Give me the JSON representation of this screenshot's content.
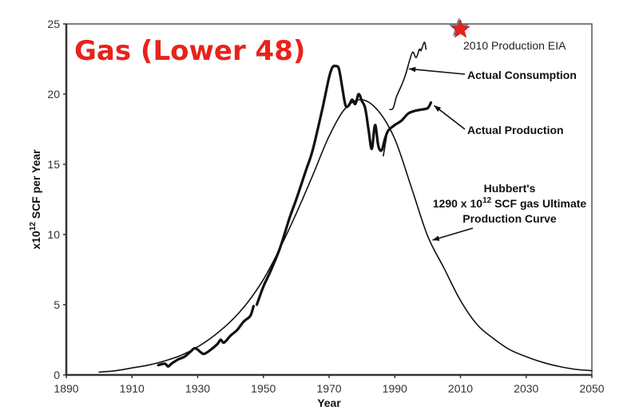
{
  "chart_data": {
    "type": "line",
    "title": "Gas (Lower 48)",
    "title_color": "#e8231c",
    "xlabel": "Year",
    "ylabel_prefix": "x10",
    "ylabel_exp": "12",
    "ylabel_suffix": " SCF per Year",
    "xlim": [
      1890,
      2050
    ],
    "ylim": [
      0,
      25
    ],
    "x_ticks": [
      1890,
      1910,
      1930,
      1950,
      1970,
      1990,
      2010,
      2030,
      2050
    ],
    "y_ticks": [
      0,
      5,
      10,
      15,
      20,
      25
    ],
    "grid": false,
    "series": [
      {
        "name": "Hubbert's Production Curve",
        "style": "thin",
        "points": [
          [
            1900,
            0.2
          ],
          [
            1905,
            0.3
          ],
          [
            1910,
            0.5
          ],
          [
            1915,
            0.7
          ],
          [
            1920,
            1.0
          ],
          [
            1925,
            1.4
          ],
          [
            1930,
            2.0
          ],
          [
            1935,
            2.8
          ],
          [
            1940,
            3.8
          ],
          [
            1945,
            5.1
          ],
          [
            1950,
            6.8
          ],
          [
            1955,
            9.0
          ],
          [
            1960,
            11.5
          ],
          [
            1965,
            14.2
          ],
          [
            1970,
            17.0
          ],
          [
            1975,
            19.0
          ],
          [
            1980,
            19.6
          ],
          [
            1985,
            18.8
          ],
          [
            1990,
            16.8
          ],
          [
            1995,
            13.4
          ],
          [
            2000,
            9.9
          ],
          [
            2005,
            7.6
          ],
          [
            2010,
            5.3
          ],
          [
            2015,
            3.6
          ],
          [
            2020,
            2.6
          ],
          [
            2025,
            1.8
          ],
          [
            2030,
            1.3
          ],
          [
            2035,
            0.9
          ],
          [
            2040,
            0.6
          ],
          [
            2045,
            0.4
          ],
          [
            2050,
            0.3
          ]
        ]
      },
      {
        "name": "Actual Production",
        "style": "thick",
        "segments": [
          [
            [
              1918,
              0.7
            ],
            [
              1920,
              0.8
            ],
            [
              1921,
              0.6
            ],
            [
              1922,
              0.8
            ],
            [
              1924,
              1.1
            ],
            [
              1926,
              1.3
            ],
            [
              1928,
              1.7
            ],
            [
              1929,
              1.9
            ],
            [
              1930,
              1.8
            ],
            [
              1931,
              1.6
            ],
            [
              1932,
              1.5
            ],
            [
              1934,
              1.8
            ],
            [
              1936,
              2.2
            ],
            [
              1937,
              2.5
            ],
            [
              1938,
              2.3
            ],
            [
              1940,
              2.8
            ],
            [
              1942,
              3.2
            ],
            [
              1944,
              3.8
            ],
            [
              1946,
              4.2
            ],
            [
              1947,
              4.9
            ]
          ],
          [
            [
              1948,
              5.0
            ],
            [
              1950,
              6.3
            ],
            [
              1952,
              7.3
            ],
            [
              1955,
              9.0
            ],
            [
              1958,
              11.2
            ],
            [
              1960,
              12.5
            ],
            [
              1963,
              14.6
            ],
            [
              1965,
              16.0
            ],
            [
              1968,
              19.0
            ],
            [
              1970,
              21.2
            ],
            [
              1971,
              21.9
            ],
            [
              1972,
              22.0
            ],
            [
              1973,
              21.8
            ],
            [
              1974,
              20.5
            ],
            [
              1975,
              19.2
            ],
            [
              1976,
              19.2
            ],
            [
              1977,
              19.6
            ],
            [
              1978,
              19.3
            ],
            [
              1979,
              20.0
            ],
            [
              1980,
              19.5
            ],
            [
              1981,
              19.0
            ],
            [
              1982,
              17.5
            ],
            [
              1983,
              16.1
            ],
            [
              1984,
              17.8
            ],
            [
              1985,
              16.3
            ],
            [
              1986,
              16.0
            ],
            [
              1987,
              16.8
            ],
            [
              1988,
              17.4
            ],
            [
              1990,
              17.8
            ],
            [
              1992,
              18.1
            ],
            [
              1994,
              18.6
            ],
            [
              1996,
              18.8
            ],
            [
              1998,
              18.9
            ],
            [
              2000,
              19.0
            ],
            [
              2001,
              19.4
            ]
          ]
        ]
      },
      {
        "name": "Actual Consumption",
        "style": "thin",
        "segments": [
          [
            [
              1986.5,
              15.6
            ],
            [
              1987.5,
              17.0
            ]
          ],
          [
            [
              1988.5,
              18.9
            ],
            [
              1989.5,
              19.0
            ],
            [
              1990.5,
              19.8
            ],
            [
              1992,
              20.6
            ],
            [
              1993,
              21.2
            ],
            [
              1993.8,
              21.8
            ],
            [
              1994.5,
              22.4
            ],
            [
              1995.5,
              23.0
            ],
            [
              1996.5,
              22.6
            ],
            [
              1997.5,
              23.2
            ],
            [
              1998,
              23.1
            ],
            [
              1999,
              23.7
            ],
            [
              1999.5,
              23.2
            ]
          ]
        ]
      }
    ],
    "markers": [
      {
        "name": "2010 Production EIA",
        "year": 2010,
        "value": 24.6,
        "symbol": "star",
        "color": "#e8231c"
      }
    ],
    "annotations": {
      "eia_label": "2010 Production EIA",
      "consumption_label": "Actual Consumption",
      "production_label": "Actual Production",
      "hubbert_line1": "Hubbert's",
      "hubbert_line2_pre": "1290 x 10",
      "hubbert_line2_exp": "12",
      "hubbert_line2_post": " SCF gas Ultimate",
      "hubbert_line3": "Production Curve"
    }
  }
}
